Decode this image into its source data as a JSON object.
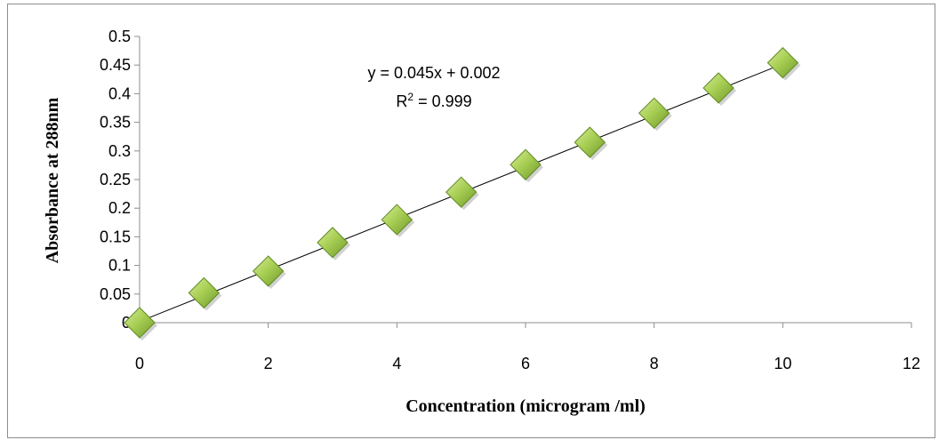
{
  "chart_data": {
    "type": "scatter",
    "title": "",
    "xlabel": "Concentration (microgram /ml)",
    "ylabel": "Absorbance at 288nm",
    "xlim": [
      0,
      12
    ],
    "ylim": [
      0,
      0.5
    ],
    "x_ticks": [
      "0",
      "2",
      "4",
      "6",
      "8",
      "10",
      "12"
    ],
    "y_ticks": [
      "0",
      "0.05",
      "0.1",
      "0.15",
      "0.2",
      "0.25",
      "0.3",
      "0.35",
      "0.4",
      "0.45",
      "0.5"
    ],
    "grid": false,
    "legend": "none",
    "series": [
      {
        "marker": "diamond",
        "color": "#8db33c",
        "x": [
          0,
          1,
          2,
          3,
          4,
          5,
          6,
          7,
          8,
          9,
          10
        ],
        "y": [
          0,
          0.052,
          0.09,
          0.14,
          0.18,
          0.228,
          0.276,
          0.315,
          0.366,
          0.41,
          0.454
        ]
      }
    ],
    "trendline": {
      "type": "linear",
      "slope": 0.045,
      "intercept": 0.002,
      "color": "#000000"
    },
    "annotations": {
      "equation": "y = 0.045x + 0.002",
      "r_squared_prefix": "R",
      "r_squared_sup": "2",
      "r_squared_suffix": " = 0.999"
    }
  }
}
